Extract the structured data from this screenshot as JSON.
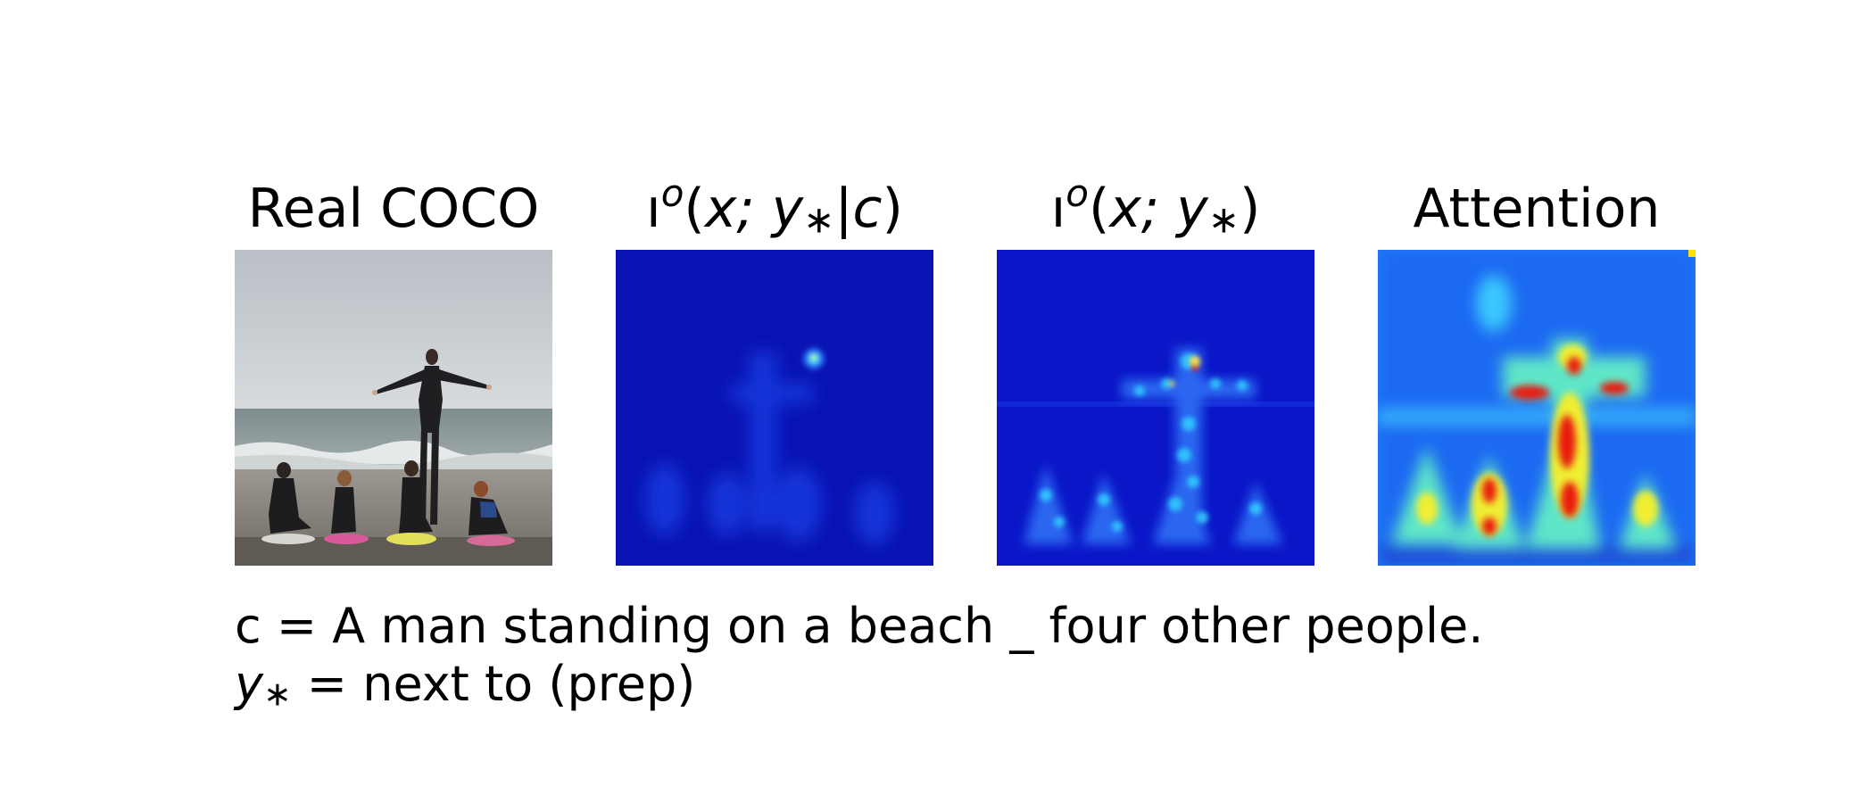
{
  "panels": [
    {
      "title": "Real COCO",
      "kind": "photo"
    },
    {
      "title_math": {
        "sym": "ı",
        "sup": "o",
        "args": "x; y",
        "star": "∗",
        "cond": "|c"
      },
      "kind": "heatmap-faint"
    },
    {
      "title_math": {
        "sym": "ı",
        "sup": "o",
        "args": "x; y",
        "star": "∗",
        "cond": ""
      },
      "kind": "heatmap-medium"
    },
    {
      "title": "Attention",
      "kind": "heatmap-strong"
    }
  ],
  "caption": {
    "line1": "c = A man standing on a beach _ four other people.",
    "line2_var": "y",
    "line2_star": "∗",
    "line2_rest": " = next to (prep)"
  },
  "colors": {
    "heat_background": "#0a16c8",
    "heat_low": "#1446e6",
    "heat_mid": "#29d6ff",
    "heat_high": "#ffe000",
    "heat_peak": "#e00000"
  }
}
